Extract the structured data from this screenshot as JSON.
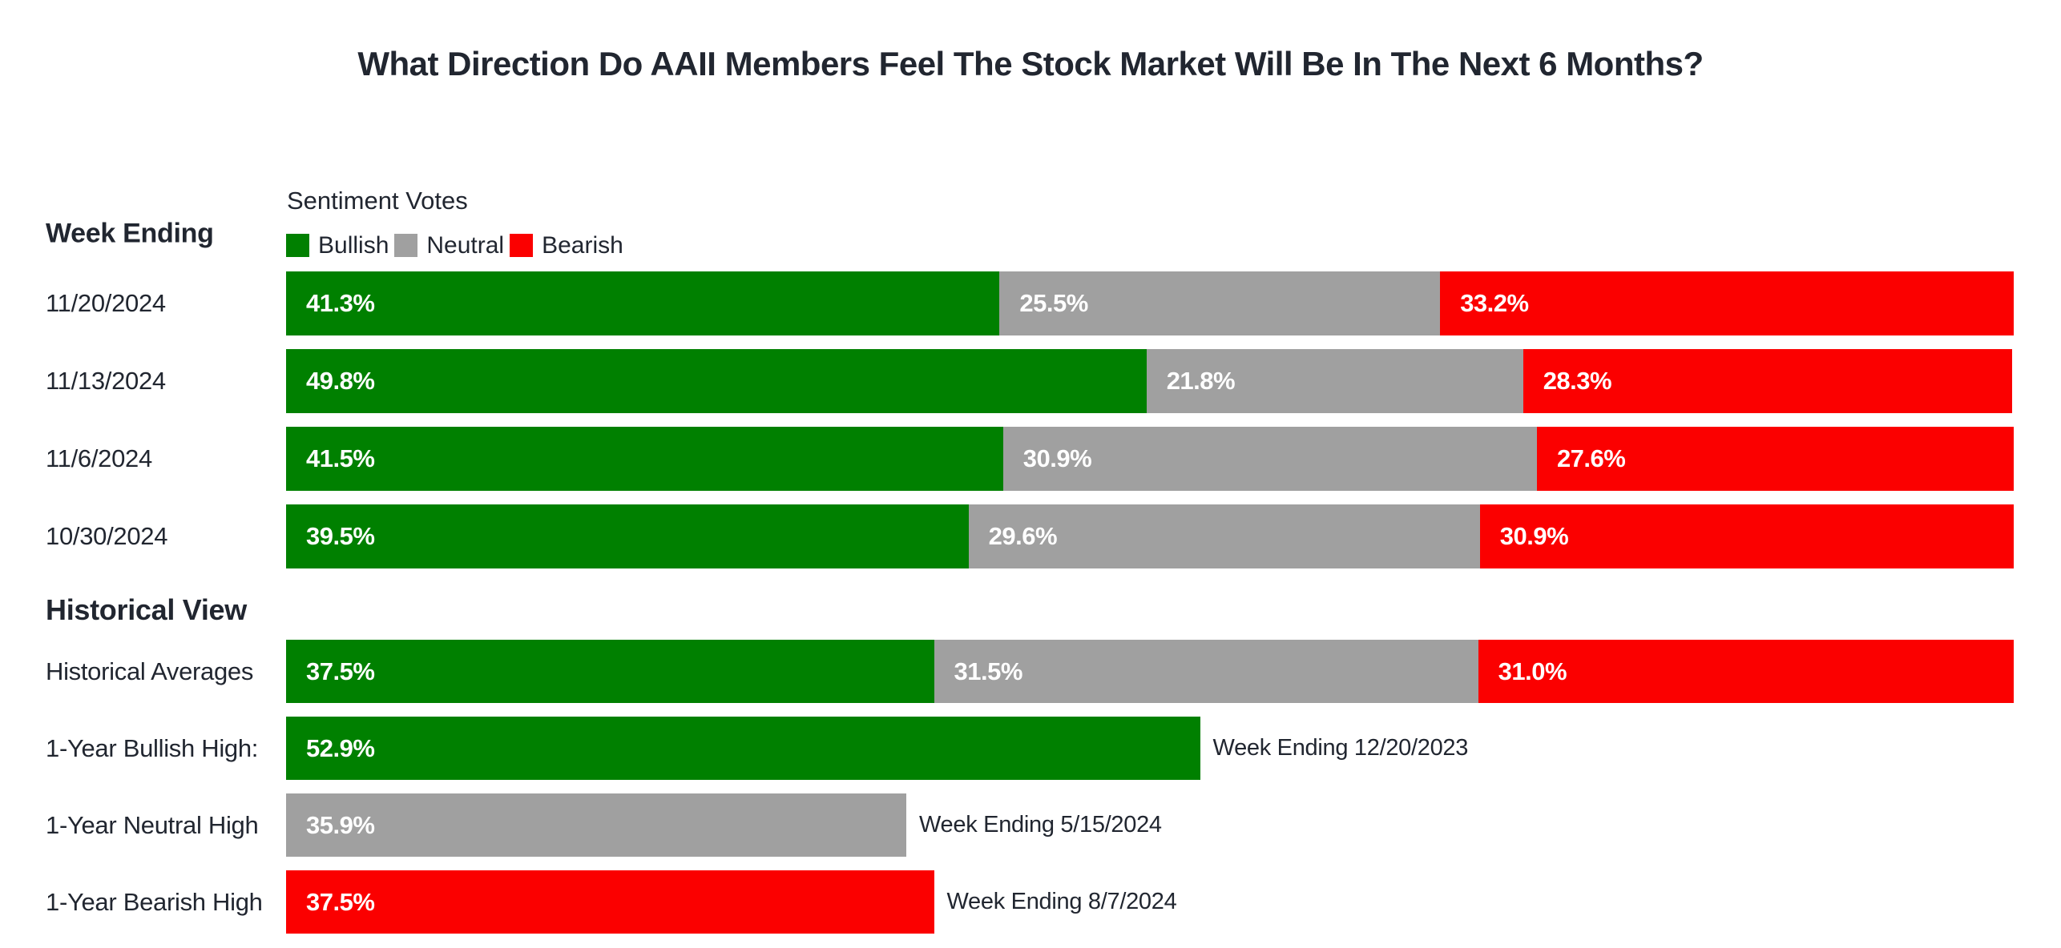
{
  "chart_data": {
    "type": "bar",
    "variant": "horizontal-stacked",
    "title": "What Direction Do AAII Members Feel The Stock Market Will Be In The Next 6 Months?",
    "axis": {
      "unit": "percent",
      "scale_max": 100,
      "grid": false
    },
    "legend": {
      "position": "top-left",
      "title": "Sentiment Votes",
      "entries": [
        {
          "label": "Bullish",
          "sentiment": "bullish"
        },
        {
          "label": "Neutral",
          "sentiment": "neutral"
        },
        {
          "label": "Bearish",
          "sentiment": "bearish"
        }
      ]
    },
    "colors": {
      "bullish": "#008000",
      "neutral": "#a0a0a0",
      "bearish": "#fb0000",
      "text": "#212630",
      "bar_label": "#ffffff"
    },
    "sections": [
      {
        "header": "Week Ending",
        "rows": [
          {
            "label": "11/20/2024",
            "segments": [
              {
                "sentiment": "bullish",
                "value": 41.3,
                "text": "41.3%"
              },
              {
                "sentiment": "neutral",
                "value": 25.5,
                "text": "25.5%"
              },
              {
                "sentiment": "bearish",
                "value": 33.2,
                "text": "33.2%"
              }
            ]
          },
          {
            "label": "11/13/2024",
            "segments": [
              {
                "sentiment": "bullish",
                "value": 49.8,
                "text": "49.8%"
              },
              {
                "sentiment": "neutral",
                "value": 21.8,
                "text": "21.8%"
              },
              {
                "sentiment": "bearish",
                "value": 28.3,
                "text": "28.3%"
              }
            ]
          },
          {
            "label": "11/6/2024",
            "segments": [
              {
                "sentiment": "bullish",
                "value": 41.5,
                "text": "41.5%"
              },
              {
                "sentiment": "neutral",
                "value": 30.9,
                "text": "30.9%"
              },
              {
                "sentiment": "bearish",
                "value": 27.6,
                "text": "27.6%"
              }
            ]
          },
          {
            "label": "10/30/2024",
            "segments": [
              {
                "sentiment": "bullish",
                "value": 39.5,
                "text": "39.5%"
              },
              {
                "sentiment": "neutral",
                "value": 29.6,
                "text": "29.6%"
              },
              {
                "sentiment": "bearish",
                "value": 30.9,
                "text": "30.9%"
              }
            ]
          }
        ]
      },
      {
        "header": "Historical View",
        "rows": [
          {
            "label": "Historical Averages",
            "segments": [
              {
                "sentiment": "bullish",
                "value": 37.5,
                "text": "37.5%"
              },
              {
                "sentiment": "neutral",
                "value": 31.5,
                "text": "31.5%"
              },
              {
                "sentiment": "bearish",
                "value": 31.0,
                "text": "31.0%"
              }
            ]
          },
          {
            "label": "1-Year Bullish High:",
            "segments": [
              {
                "sentiment": "bullish",
                "value": 52.9,
                "text": "52.9%"
              }
            ],
            "annotation": "Week Ending 12/20/2023"
          },
          {
            "label": "1-Year Neutral High",
            "segments": [
              {
                "sentiment": "neutral",
                "value": 35.9,
                "text": "35.9%"
              }
            ],
            "annotation": "Week Ending 5/15/2024"
          },
          {
            "label": "1-Year Bearish High",
            "segments": [
              {
                "sentiment": "bearish",
                "value": 37.5,
                "text": "37.5%"
              }
            ],
            "annotation": "Week Ending 8/7/2024"
          }
        ]
      }
    ]
  }
}
